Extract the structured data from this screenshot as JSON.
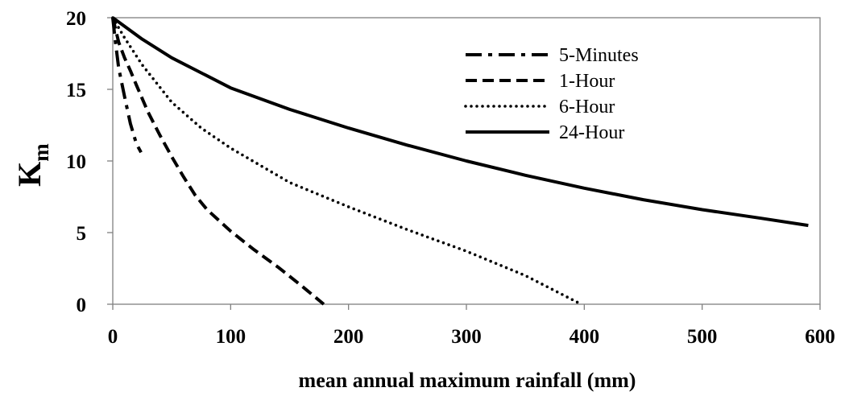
{
  "chart_data": {
    "type": "line",
    "title": "",
    "xlabel": "mean annual maximum rainfall (mm)",
    "ylabel": {
      "main": "K",
      "subscript": "m"
    },
    "xlim": [
      0,
      600
    ],
    "ylim": [
      0,
      20
    ],
    "xticks": [
      0,
      100,
      200,
      300,
      400,
      500,
      600
    ],
    "yticks": [
      0,
      5,
      10,
      15,
      20
    ],
    "grid": false,
    "legend_position": "top-right",
    "series": [
      {
        "name": "5-Minutes",
        "line_style": "dashdot",
        "color": "#000000",
        "points": [
          [
            0,
            20
          ],
          [
            2,
            18.5
          ],
          [
            5,
            16.5
          ],
          [
            10,
            14.5
          ],
          [
            15,
            12.6
          ],
          [
            20,
            11.2
          ],
          [
            24,
            10.6
          ]
        ]
      },
      {
        "name": "1-Hour",
        "line_style": "dashed",
        "color": "#000000",
        "points": [
          [
            0,
            20
          ],
          [
            5,
            18.3
          ],
          [
            10,
            17.2
          ],
          [
            15,
            16.3
          ],
          [
            20,
            15.3
          ],
          [
            30,
            13.4
          ],
          [
            40,
            11.8
          ],
          [
            50,
            10.3
          ],
          [
            60,
            8.9
          ],
          [
            70,
            7.6
          ],
          [
            80,
            6.6
          ],
          [
            100,
            5.1
          ],
          [
            120,
            3.8
          ],
          [
            140,
            2.6
          ],
          [
            160,
            1.3
          ],
          [
            179,
            0
          ]
        ]
      },
      {
        "name": "6-Hour",
        "line_style": "dotted",
        "color": "#000000",
        "points": [
          [
            0,
            20
          ],
          [
            10,
            18.6
          ],
          [
            25,
            16.7
          ],
          [
            50,
            14.1
          ],
          [
            75,
            12.3
          ],
          [
            100,
            10.9
          ],
          [
            150,
            8.5
          ],
          [
            200,
            6.8
          ],
          [
            250,
            5.2
          ],
          [
            300,
            3.7
          ],
          [
            350,
            2.0
          ],
          [
            395,
            0.1
          ]
        ]
      },
      {
        "name": "24-Hour",
        "line_style": "solid",
        "color": "#000000",
        "points": [
          [
            0,
            20
          ],
          [
            25,
            18.5
          ],
          [
            50,
            17.2
          ],
          [
            100,
            15.1
          ],
          [
            150,
            13.6
          ],
          [
            200,
            12.3
          ],
          [
            250,
            11.1
          ],
          [
            300,
            10.0
          ],
          [
            350,
            9.0
          ],
          [
            400,
            8.1
          ],
          [
            450,
            7.3
          ],
          [
            500,
            6.6
          ],
          [
            550,
            6.0
          ],
          [
            590,
            5.5
          ]
        ]
      }
    ]
  }
}
